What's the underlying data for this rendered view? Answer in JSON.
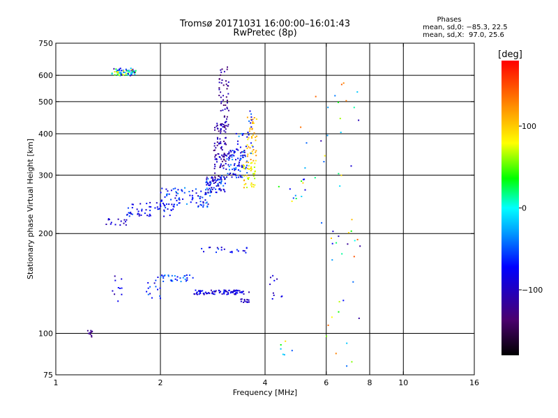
{
  "chart_data": {
    "type": "scatter",
    "title_line1": "Tromsø 20171031 16:00:00–16:01:43",
    "title_line2": "RwPretec (8p)",
    "xlabel": "Frequency [MHz]",
    "ylabel": "Stationary phase Virtual Height [km]",
    "x_scale": "log",
    "y_scale": "log",
    "xlim": [
      1,
      16
    ],
    "ylim": [
      75,
      750
    ],
    "x_ticks": [
      1,
      2,
      4,
      6,
      8,
      10,
      16
    ],
    "y_ticks": [
      75,
      100,
      200,
      300,
      400,
      500,
      600,
      750
    ],
    "grid_x": [
      2,
      4,
      6,
      8,
      10
    ],
    "grid_y": [
      100,
      200,
      300,
      400,
      500,
      600
    ],
    "phase_legend": {
      "title": "Phases",
      "stats_0": "mean, sd,0: −85.3, 22.5",
      "stats_X": "mean, sd,X:  97.0, 25.6"
    },
    "colorbar": {
      "label": "[deg]",
      "range": [
        -180,
        180
      ],
      "ticks": [
        100,
        0,
        -100
      ]
    },
    "clusters": [
      {
        "x": [
          1.45,
          1.7
        ],
        "y": [
          598,
          630
        ],
        "n": 70,
        "phase": [
          -140,
          100
        ]
      },
      {
        "x": [
          1.35,
          1.6
        ],
        "y": [
          212,
          222
        ],
        "n": 15,
        "phase": [
          -120,
          -90
        ]
      },
      {
        "x": [
          1.6,
          2.2
        ],
        "y": [
          225,
          250
        ],
        "n": 60,
        "phase": [
          -110,
          -60
        ]
      },
      {
        "x": [
          2.0,
          2.8
        ],
        "y": [
          240,
          275
        ],
        "n": 80,
        "phase": [
          -110,
          -40
        ]
      },
      {
        "x": [
          2.7,
          3.1
        ],
        "y": [
          265,
          300
        ],
        "n": 70,
        "phase": [
          -120,
          -50
        ]
      },
      {
        "x": [
          2.85,
          3.1
        ],
        "y": [
          290,
          430
        ],
        "n": 90,
        "phase": [
          -140,
          -90
        ]
      },
      {
        "x": [
          2.95,
          3.15
        ],
        "y": [
          420,
          640
        ],
        "n": 55,
        "phase": [
          -145,
          -100
        ]
      },
      {
        "x": [
          3.1,
          3.55
        ],
        "y": [
          295,
          360
        ],
        "n": 90,
        "phase": [
          -120,
          -40
        ]
      },
      {
        "x": [
          3.45,
          3.75
        ],
        "y": [
          275,
          330
        ],
        "n": 45,
        "phase": [
          60,
          120
        ]
      },
      {
        "x": [
          3.55,
          3.8
        ],
        "y": [
          330,
          450
        ],
        "n": 40,
        "phase": [
          80,
          130
        ]
      },
      {
        "x": [
          3.3,
          3.7
        ],
        "y": [
          340,
          470
        ],
        "n": 25,
        "phase": [
          -110,
          -40
        ]
      },
      {
        "x": [
          2.5,
          3.6
        ],
        "y": [
          131,
          135
        ],
        "n": 85,
        "phase": [
          -120,
          -70
        ]
      },
      {
        "x": [
          2.6,
          3.6
        ],
        "y": [
          175,
          182
        ],
        "n": 20,
        "phase": [
          -120,
          -60
        ]
      },
      {
        "x": [
          3.4,
          3.6
        ],
        "y": [
          124,
          127
        ],
        "n": 15,
        "phase": [
          -120,
          -90
        ]
      },
      {
        "x": [
          2.0,
          2.5
        ],
        "y": [
          143,
          150
        ],
        "n": 30,
        "phase": [
          -90,
          -40
        ]
      },
      {
        "x": [
          1.8,
          2.0
        ],
        "y": [
          125,
          150
        ],
        "n": 15,
        "phase": [
          -110,
          -50
        ]
      },
      {
        "x": [
          1.45,
          1.55
        ],
        "y": [
          125,
          150
        ],
        "n": 10,
        "phase": [
          -130,
          -80
        ]
      },
      {
        "x": [
          1.22,
          1.28
        ],
        "y": [
          97,
          102
        ],
        "n": 10,
        "phase": [
          -140,
          -110
        ]
      },
      {
        "x": [
          4.1,
          4.5
        ],
        "y": [
          125,
          150
        ],
        "n": 10,
        "phase": [
          -120,
          -70
        ]
      },
      {
        "x": [
          4.3,
          5.3
        ],
        "y": [
          225,
          300
        ],
        "n": 12,
        "phase": [
          -100,
          120
        ]
      },
      {
        "x": [
          4.4,
          4.8
        ],
        "y": [
          82,
          95
        ],
        "n": 6,
        "phase": [
          -120,
          120
        ]
      },
      {
        "x": [
          5.0,
          7.5
        ],
        "y": [
          170,
          600
        ],
        "n": 30,
        "phase": [
          -120,
          150
        ]
      },
      {
        "x": [
          6.0,
          7.6
        ],
        "y": [
          78,
          210
        ],
        "n": 22,
        "phase": [
          -130,
          150
        ]
      }
    ]
  }
}
